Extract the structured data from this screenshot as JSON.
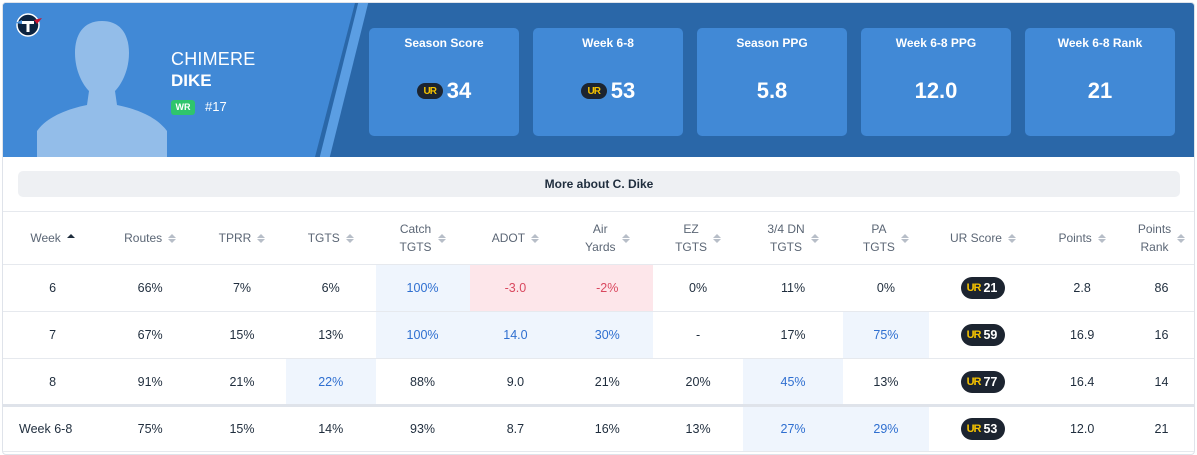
{
  "player": {
    "first_name": "CHIMERE",
    "last_name": "DIKE",
    "position": "WR",
    "jersey": "#17"
  },
  "stat_cards": [
    {
      "label": "Season Score",
      "value": "34",
      "ur_badge": true
    },
    {
      "label": "Week 6-8",
      "value": "53",
      "ur_badge": true
    },
    {
      "label": "Season PPG",
      "value": "5.8",
      "ur_badge": false
    },
    {
      "label": "Week 6-8 PPG",
      "value": "12.0",
      "ur_badge": false
    },
    {
      "label": "Week 6-8 Rank",
      "value": "21",
      "ur_badge": false
    }
  ],
  "ur_logo_text": "UR",
  "more_button": "More about C. Dike",
  "table": {
    "headers": [
      {
        "l1": "Week",
        "l2": "",
        "sort": "asc"
      },
      {
        "l1": "Routes",
        "l2": "",
        "sort": "none"
      },
      {
        "l1": "TPRR",
        "l2": "",
        "sort": "none"
      },
      {
        "l1": "TGTS",
        "l2": "",
        "sort": "none"
      },
      {
        "l1": "Catch",
        "l2": "TGTS",
        "sort": "none"
      },
      {
        "l1": "ADOT",
        "l2": "",
        "sort": "none"
      },
      {
        "l1": "Air",
        "l2": "Yards",
        "sort": "none"
      },
      {
        "l1": "EZ",
        "l2": "TGTS",
        "sort": "none"
      },
      {
        "l1": "3/4 DN",
        "l2": "TGTS",
        "sort": "none"
      },
      {
        "l1": "PA",
        "l2": "TGTS",
        "sort": "none"
      },
      {
        "l1": "UR Score",
        "l2": "",
        "sort": "none"
      },
      {
        "l1": "Points",
        "l2": "",
        "sort": "none"
      },
      {
        "l1": "Points",
        "l2": "Rank",
        "sort": "none"
      }
    ],
    "rows": [
      {
        "cells": [
          "6",
          "66%",
          "7%",
          "6%",
          "100%",
          "-3.0",
          "-2%",
          "0%",
          "11%",
          "0%",
          "21",
          "2.8",
          "86"
        ],
        "styles": [
          "",
          "",
          "",
          "",
          "blue",
          "red",
          "red",
          "",
          "",
          "",
          "",
          "",
          ""
        ]
      },
      {
        "cells": [
          "7",
          "67%",
          "15%",
          "13%",
          "100%",
          "14.0",
          "30%",
          "-",
          "17%",
          "75%",
          "59",
          "16.9",
          "16"
        ],
        "styles": [
          "",
          "",
          "",
          "",
          "blue",
          "blue",
          "blue",
          "",
          "",
          "blue",
          "",
          "",
          ""
        ]
      },
      {
        "cells": [
          "8",
          "91%",
          "21%",
          "22%",
          "88%",
          "9.0",
          "21%",
          "20%",
          "45%",
          "13%",
          "77",
          "16.4",
          "14"
        ],
        "styles": [
          "",
          "",
          "",
          "blue",
          "",
          "",
          "",
          "",
          "blue",
          "",
          "",
          "",
          ""
        ]
      }
    ],
    "total": {
      "cells": [
        "Week 6-8",
        "75%",
        "15%",
        "14%",
        "93%",
        "8.7",
        "16%",
        "13%",
        "27%",
        "29%",
        "53",
        "12.0",
        "21"
      ],
      "styles": [
        "",
        "",
        "",
        "",
        "",
        "",
        "",
        "",
        "blue",
        "blue",
        "",
        "",
        ""
      ]
    }
  },
  "colors": {
    "header_dark": "#2a67a8",
    "header_light": "#4189d6",
    "highlight_blue": "#eff5fd",
    "highlight_red": "#fde6ea",
    "ur_badge": "#1c2430",
    "ur_gold": "#f5c200",
    "position_badge": "#2fc56c"
  },
  "icons": {
    "team_logo": "titans-logo-icon",
    "avatar": "player-silhouette-icon",
    "sort": "sort-arrows-icon"
  }
}
